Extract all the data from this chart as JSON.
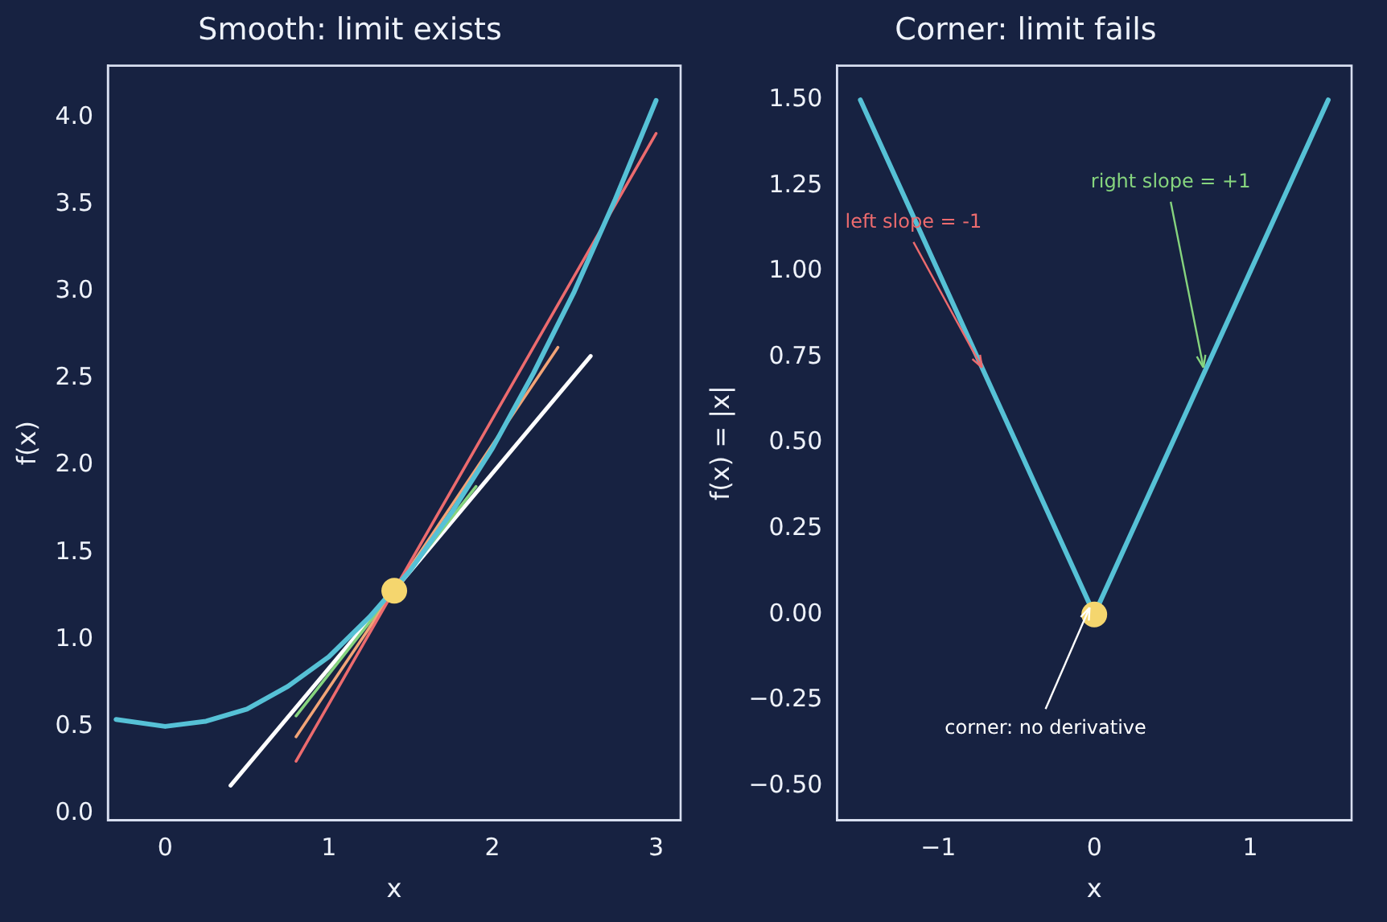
{
  "chart_data": [
    {
      "type": "line",
      "title": "Smooth: limit exists",
      "xlabel": "x",
      "ylabel": "f(x)",
      "xlim": [
        -0.35,
        3.15
      ],
      "xticks": [
        0,
        1,
        2,
        3
      ],
      "ylim": [
        -0.04,
        4.3
      ],
      "yticks": [
        {
          "value": 0,
          "label": "0.0"
        },
        {
          "value": 0.5,
          "label": "0.5"
        },
        {
          "value": 1,
          "label": "1.0"
        },
        {
          "value": 1.5,
          "label": "1.5"
        },
        {
          "value": 2,
          "label": "2.0"
        },
        {
          "value": 2.5,
          "label": "2.5"
        },
        {
          "value": 3,
          "label": "3.0"
        },
        {
          "value": 3.5,
          "label": "3.5"
        },
        {
          "value": 4,
          "label": "4.0"
        }
      ],
      "grid": false,
      "legend": false,
      "marker": "none",
      "line_style": "solid",
      "series": [
        {
          "color": "#56c1d6",
          "x": [
            -0.3,
            0,
            0.25,
            0.5,
            0.75,
            1,
            1.25,
            1.5,
            1.75,
            2,
            2.25,
            2.5,
            2.75,
            3
          ],
          "values": [
            0.54,
            0.5,
            0.53,
            0.6,
            0.73,
            0.9,
            1.13,
            1.4,
            1.73,
            2.1,
            2.53,
            3.0,
            3.53,
            4.1
          ]
        },
        {
          "color": "#ec6b6e",
          "x": [
            0.8,
            3
          ],
          "values": [
            0.3,
            3.91
          ]
        },
        {
          "color": "#f2a477",
          "x": [
            0.8,
            2.4
          ],
          "values": [
            0.44,
            2.68
          ]
        },
        {
          "color": "#86d47e",
          "x": [
            0.8,
            1.9
          ],
          "values": [
            0.56,
            1.88
          ]
        },
        {
          "color": "#ffffff",
          "x": [
            0.4,
            2.6
          ],
          "values": [
            0.16,
            2.63
          ]
        },
        {
          "type": "scatter",
          "marker": "circle",
          "color": "#f5d66e",
          "x": [
            1.4
          ],
          "values": [
            1.28
          ]
        }
      ]
    },
    {
      "type": "line",
      "title": "Corner: limit fails",
      "xlabel": "x",
      "ylabel": "f(x) = |x|",
      "xlim": [
        -1.65,
        1.65
      ],
      "xticks": [
        {
          "value": -1,
          "label": "−1"
        },
        0,
        1
      ],
      "ylim": [
        -0.6,
        1.6
      ],
      "yticks": [
        {
          "value": -0.5,
          "label": "−0.50"
        },
        {
          "value": -0.25,
          "label": "−0.25"
        },
        {
          "value": 0,
          "label": "0.00"
        },
        {
          "value": 0.25,
          "label": "0.25"
        },
        {
          "value": 0.5,
          "label": "0.50"
        },
        {
          "value": 0.75,
          "label": "0.75"
        },
        {
          "value": 1,
          "label": "1.00"
        },
        {
          "value": 1.25,
          "label": "1.25"
        },
        {
          "value": 1.5,
          "label": "1.50"
        }
      ],
      "grid": false,
      "legend": false,
      "marker": "none",
      "line_style": "solid",
      "series": [
        {
          "color": "#56c1d6",
          "x": [
            -1.5,
            0,
            1.5
          ],
          "values": [
            1.5,
            0,
            1.5
          ]
        },
        {
          "type": "scatter",
          "marker": "circle",
          "color": "#f5d66e",
          "x": [
            0
          ],
          "values": [
            0
          ]
        }
      ],
      "annotations": [
        {
          "text": "left slope = -1",
          "x": -0.72,
          "y": 0.72
        },
        {
          "text": "right slope = +1",
          "x": 0.7,
          "y": 0.72
        },
        {
          "text": "corner: no derivative",
          "x": -0.03,
          "y": 0.02
        }
      ]
    }
  ]
}
